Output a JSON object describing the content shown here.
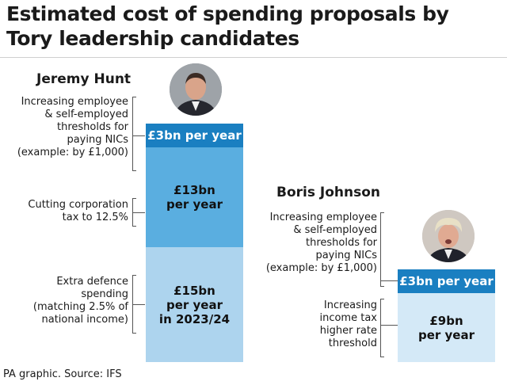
{
  "chart_data": {
    "type": "bar",
    "title": "Estimated cost of spending proposals by Tory leadership candidates",
    "unit": "bn",
    "series": [
      {
        "name": "Jeremy Hunt",
        "segments": [
          {
            "description": "Increasing employee & self-employed thresholds for paying NICs (example: by £1,000)",
            "value": 3,
            "label_lines": [
              "£3bn per year"
            ]
          },
          {
            "description": "Cutting corporation tax to 12.5%",
            "value": 13,
            "label_lines": [
              "£13bn",
              "per year"
            ]
          },
          {
            "description": "Extra defence spending (matching 2.5% of national income)",
            "value": 15,
            "label_lines": [
              "£15bn",
              "per year",
              "in 2023/24"
            ]
          }
        ]
      },
      {
        "name": "Boris Johnson",
        "segments": [
          {
            "description": "Increasing employee & self-employed thresholds for paying NICs (example: by £1,000)",
            "value": 3,
            "label_lines": [
              "£3bn per year"
            ]
          },
          {
            "description": "Increasing income tax higher rate threshold",
            "value": 9,
            "label_lines": [
              "£9bn",
              "per year"
            ]
          }
        ]
      }
    ],
    "colors": {
      "segment1": "#1a7fc1",
      "segment2": "#5aaee0",
      "segment3": "#add4ee",
      "boris_segment2": "#d4e9f7"
    }
  },
  "text": {
    "title": "Estimated cost of spending proposals by Tory leadership candidates",
    "hunt_name": "Jeremy Hunt",
    "johnson_name": "Boris Johnson",
    "hunt_desc_1": [
      "Increasing employee",
      "& self-employed",
      "thresholds for",
      "paying NICs",
      "(example: by £1,000)"
    ],
    "hunt_desc_2": [
      "Cutting corporation",
      "tax to 12.5%"
    ],
    "hunt_desc_3": [
      "Extra defence",
      "spending",
      "(matching 2.5% of",
      "national income)"
    ],
    "johnson_desc_1": [
      "Increasing employee",
      "& self-employed",
      "thresholds for",
      "paying NICs",
      "(example: by £1,000)"
    ],
    "johnson_desc_2": [
      "Increasing",
      "income tax",
      "higher rate",
      "threshold"
    ],
    "footer": "PA graphic. Source: IFS"
  },
  "icons": {
    "hunt_photo": "person-portrait-icon",
    "johnson_photo": "person-portrait-icon"
  }
}
